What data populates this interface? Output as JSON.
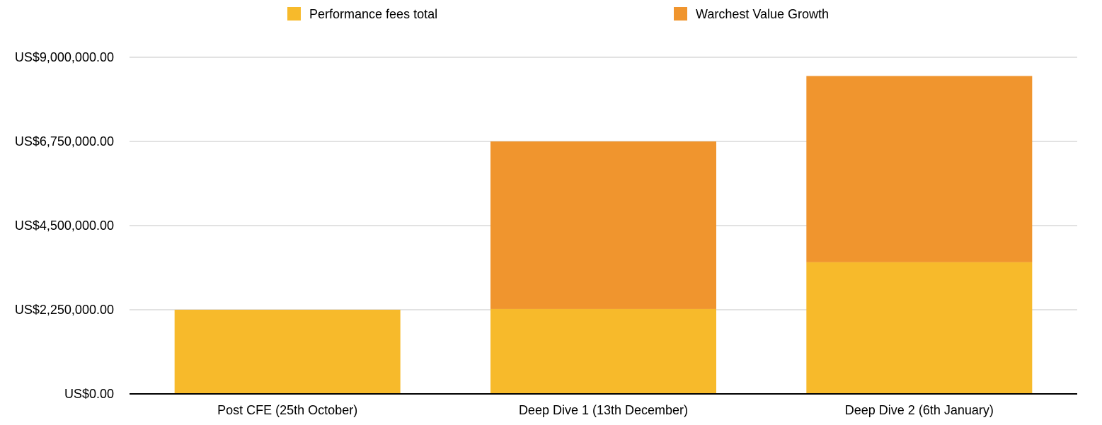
{
  "chart_data": {
    "type": "bar",
    "stacked": true,
    "categories": [
      "Post CFE (25th October)",
      "Deep Dive 1 (13th December)",
      "Deep Dive 2 (6th January)"
    ],
    "series": [
      {
        "name": "Performance fees total",
        "color": "#F7BA2B",
        "values": [
          2250000,
          2270000,
          3520000
        ]
      },
      {
        "name": "Warchest Value Growth",
        "color": "#F0952E",
        "values": [
          0,
          4480000,
          4980000
        ]
      }
    ],
    "y_ticks": [
      {
        "value": 0,
        "label": "US$0.00"
      },
      {
        "value": 2250000,
        "label": "US$2,250,000.00"
      },
      {
        "value": 4500000,
        "label": "US$4,500,000.00"
      },
      {
        "value": 6750000,
        "label": "US$6,750,000.00"
      },
      {
        "value": 9000000,
        "label": "US$9,000,000.00"
      }
    ],
    "ylim": [
      0,
      9000000
    ],
    "grid": true,
    "legend_position": "top",
    "title": "",
    "xlabel": "",
    "ylabel": ""
  }
}
